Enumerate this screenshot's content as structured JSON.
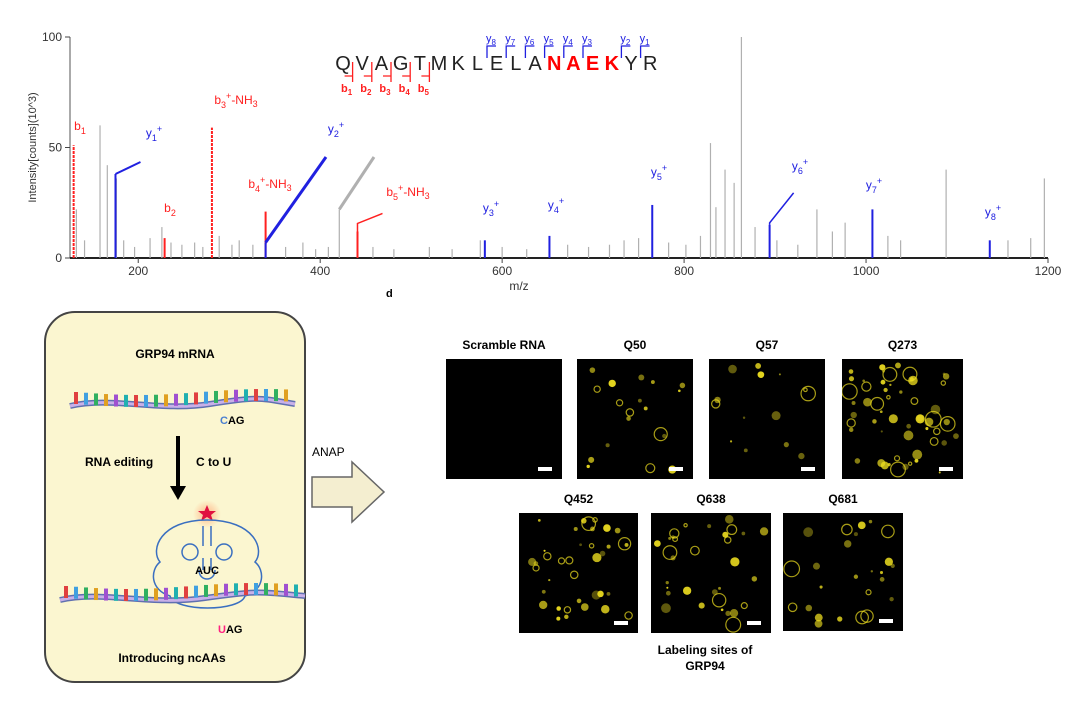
{
  "chart_data": {
    "type": "bar",
    "xlabel": "m/z",
    "ylabel": "Intensity[counts](10^3)",
    "xlim": [
      125,
      1200
    ],
    "ylim": [
      0,
      100
    ],
    "x_ticks": [
      "200",
      "400",
      "600",
      "800",
      "1000",
      "1200"
    ],
    "y_ticks": [
      "0",
      "50",
      "100"
    ],
    "peptide": [
      "Q",
      "V",
      "A",
      "G",
      "T",
      "M",
      "K",
      "L",
      "E",
      "L",
      "A",
      "N",
      "A",
      "E",
      "K",
      "Y",
      "R"
    ],
    "peptide_highlight": [
      11,
      12,
      13,
      14
    ],
    "b_brackets": [
      {
        "after": 0,
        "label": "b",
        "sub": "1"
      },
      {
        "after": 1,
        "label": "b",
        "sub": "2"
      },
      {
        "after": 2,
        "label": "b",
        "sub": "3"
      },
      {
        "after": 3,
        "label": "b",
        "sub": "4"
      },
      {
        "after": 4,
        "label": "b",
        "sub": "5"
      }
    ],
    "y_brackets": [
      {
        "after": 8,
        "label": "y",
        "sub": "8"
      },
      {
        "after": 9,
        "label": "y",
        "sub": "7"
      },
      {
        "after": 10,
        "label": "y",
        "sub": "6"
      },
      {
        "after": 11,
        "label": "y",
        "sub": "5"
      },
      {
        "after": 12,
        "label": "y",
        "sub": "4"
      },
      {
        "after": 13,
        "label": "y",
        "sub": "3"
      },
      {
        "after": 15,
        "label": "y",
        "sub": "2"
      },
      {
        "after": 16,
        "label": "y",
        "sub": "1"
      }
    ],
    "series": [
      {
        "name": "b",
        "color": "#ff2020",
        "peaks": [
          {
            "mz": 129,
            "value": 51,
            "label": "b",
            "sub": "1",
            "sup": ""
          },
          {
            "mz": 229,
            "value": 9,
            "label": "b",
            "sub": "2",
            "sup": ""
          },
          {
            "mz": 281,
            "value": 59,
            "label": "b",
            "sub": "3",
            "sup": "+",
            "suffix": "-NH3"
          },
          {
            "mz": 340,
            "value": 21,
            "label": "b",
            "sub": "4",
            "sup": "+",
            "suffix": "-NH3"
          },
          {
            "mz": 441,
            "value": 12,
            "label": "b",
            "sub": "5",
            "sup": "+",
            "suffix": "-NH3"
          }
        ]
      },
      {
        "name": "y",
        "color": "#2020e0",
        "peaks": [
          {
            "mz": 175,
            "value": 38,
            "label": "y",
            "sub": "1",
            "sup": "+"
          },
          {
            "mz": 340,
            "value": 7,
            "label": "y",
            "sub": "2",
            "sup": "+"
          },
          {
            "mz": 581,
            "value": 8,
            "label": "y",
            "sub": "3",
            "sup": "+"
          },
          {
            "mz": 652,
            "value": 10,
            "label": "y",
            "sub": "4",
            "sup": "+"
          },
          {
            "mz": 765,
            "value": 24,
            "label": "y",
            "sub": "5",
            "sup": "+"
          },
          {
            "mz": 894,
            "value": 15,
            "label": "y",
            "sub": "6",
            "sup": "+"
          },
          {
            "mz": 1007,
            "value": 22,
            "label": "y",
            "sub": "7",
            "sup": "+"
          },
          {
            "mz": 1136,
            "value": 8,
            "label": "y",
            "sub": "8",
            "sup": "+"
          }
        ]
      },
      {
        "name": "other",
        "color": "#b0b0b0",
        "peaks": [
          {
            "mz": 132,
            "value": 22
          },
          {
            "mz": 141,
            "value": 8
          },
          {
            "mz": 158,
            "value": 60
          },
          {
            "mz": 166,
            "value": 42
          },
          {
            "mz": 176,
            "value": 36
          },
          {
            "mz": 184,
            "value": 8
          },
          {
            "mz": 196,
            "value": 5
          },
          {
            "mz": 213,
            "value": 9
          },
          {
            "mz": 226,
            "value": 14
          },
          {
            "mz": 236,
            "value": 7
          },
          {
            "mz": 248,
            "value": 6
          },
          {
            "mz": 262,
            "value": 7
          },
          {
            "mz": 271,
            "value": 5
          },
          {
            "mz": 289,
            "value": 10
          },
          {
            "mz": 303,
            "value": 6
          },
          {
            "mz": 311,
            "value": 8
          },
          {
            "mz": 326,
            "value": 6
          },
          {
            "mz": 362,
            "value": 5
          },
          {
            "mz": 381,
            "value": 7
          },
          {
            "mz": 395,
            "value": 4
          },
          {
            "mz": 409,
            "value": 5
          },
          {
            "mz": 421,
            "value": 22
          },
          {
            "mz": 458,
            "value": 5
          },
          {
            "mz": 481,
            "value": 4
          },
          {
            "mz": 520,
            "value": 5
          },
          {
            "mz": 545,
            "value": 4
          },
          {
            "mz": 576,
            "value": 8
          },
          {
            "mz": 600,
            "value": 5
          },
          {
            "mz": 627,
            "value": 4
          },
          {
            "mz": 672,
            "value": 6
          },
          {
            "mz": 695,
            "value": 5
          },
          {
            "mz": 718,
            "value": 6
          },
          {
            "mz": 734,
            "value": 8
          },
          {
            "mz": 750,
            "value": 9
          },
          {
            "mz": 783,
            "value": 7
          },
          {
            "mz": 802,
            "value": 6
          },
          {
            "mz": 818,
            "value": 10
          },
          {
            "mz": 829,
            "value": 52
          },
          {
            "mz": 835,
            "value": 23
          },
          {
            "mz": 845,
            "value": 40
          },
          {
            "mz": 855,
            "value": 34
          },
          {
            "mz": 863,
            "value": 100
          },
          {
            "mz": 878,
            "value": 14
          },
          {
            "mz": 902,
            "value": 8
          },
          {
            "mz": 925,
            "value": 6
          },
          {
            "mz": 946,
            "value": 22
          },
          {
            "mz": 963,
            "value": 12
          },
          {
            "mz": 977,
            "value": 16
          },
          {
            "mz": 1024,
            "value": 10
          },
          {
            "mz": 1038,
            "value": 8
          },
          {
            "mz": 1088,
            "value": 40
          },
          {
            "mz": 1156,
            "value": 8
          },
          {
            "mz": 1181,
            "value": 9
          },
          {
            "mz": 1196,
            "value": 36
          }
        ]
      }
    ]
  },
  "panel_label": "d",
  "schematic": {
    "mrna_title": "GRP94 mRNA",
    "codon_top": "CAG",
    "codon_top_highlight": "C",
    "codon_top_rest": "AG",
    "editing_label": "RNA editing",
    "conversion_label": "C to U",
    "anticodon": "AUC",
    "codon_bottom_highlight": "U",
    "codon_bottom_rest": "AG",
    "footer": "Introducing ncAAs",
    "arrow_label": "ANAP",
    "colors": {
      "panel_bg": "#fbf6d0",
      "c_base": "#4a7fd0",
      "u_base": "#ff2080",
      "star": "#e01040"
    }
  },
  "microscopy": {
    "panels": [
      {
        "title": "Scramble  RNA",
        "density": 0
      },
      {
        "title": "Q50",
        "density": 14
      },
      {
        "title": "Q57",
        "density": 11
      },
      {
        "title": "Q273",
        "density": 40
      },
      {
        "title": "Q452",
        "density": 26
      },
      {
        "title": "Q638",
        "density": 22
      },
      {
        "title": "Q681",
        "density": 18
      }
    ],
    "caption_line1": "Labeling sites of",
    "caption_line2": "GRP94",
    "fluor_color": "#f0e020"
  }
}
